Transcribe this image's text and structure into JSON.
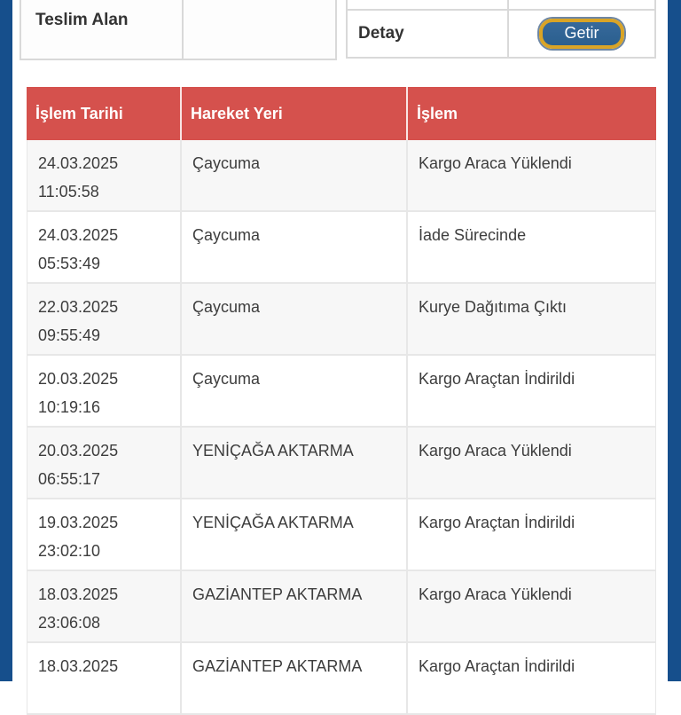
{
  "colors": {
    "frame_blue": "#164F8C",
    "header_red": "#D5514D",
    "button_blue": "#2E6598",
    "button_gold": "#D9A426",
    "row_alt_gray": "#F7F7F7"
  },
  "top_section": {
    "teslim_alan_label": "Teslim Alan",
    "teslim_alan_value": "",
    "detay_label": "Detay",
    "getir_button_label": "Getir"
  },
  "history_table": {
    "columns": [
      "İşlem Tarihi",
      "Hareket Yeri",
      "İşlem"
    ],
    "rows": [
      {
        "date": "24.03.2025",
        "time": "11:05:58",
        "location": "Çaycuma",
        "action": "Kargo Araca Yüklendi"
      },
      {
        "date": "24.03.2025",
        "time": "05:53:49",
        "location": "Çaycuma",
        "action": "İade Sürecinde"
      },
      {
        "date": "22.03.2025",
        "time": "09:55:49",
        "location": "Çaycuma",
        "action": "Kurye Dağıtıma Çıktı"
      },
      {
        "date": "20.03.2025",
        "time": "10:19:16",
        "location": "Çaycuma",
        "action": "Kargo Araçtan İndirildi"
      },
      {
        "date": "20.03.2025",
        "time": "06:55:17",
        "location": "YENİÇAĞA AKTARMA",
        "action": "Kargo Araca Yüklendi"
      },
      {
        "date": "19.03.2025",
        "time": "23:02:10",
        "location": "YENİÇAĞA AKTARMA",
        "action": "Kargo Araçtan İndirildi"
      },
      {
        "date": "18.03.2025",
        "time": "23:06:08",
        "location": "GAZİANTEP AKTARMA",
        "action": "Kargo Araca Yüklendi"
      },
      {
        "date": "18.03.2025",
        "time": "",
        "location": "GAZİANTEP AKTARMA",
        "action": "Kargo Araçtan İndirildi"
      }
    ]
  }
}
